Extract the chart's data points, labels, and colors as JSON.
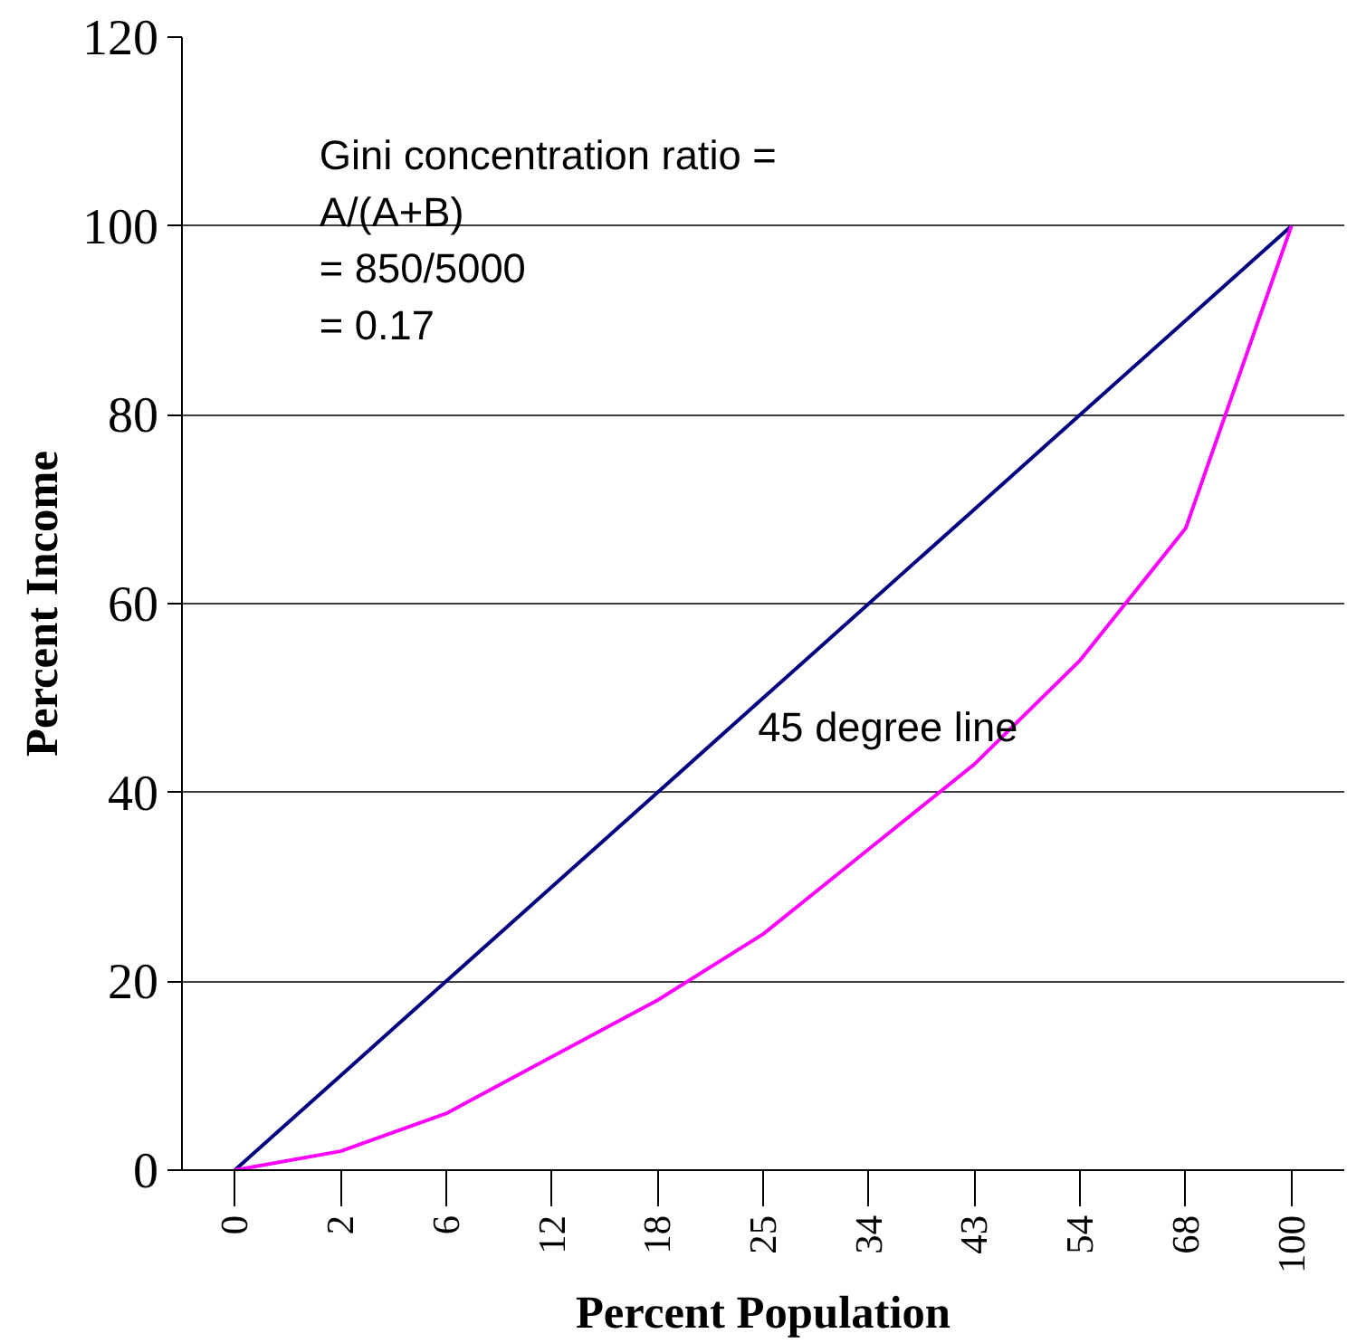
{
  "chart_data": {
    "type": "line",
    "xlabel": "Percent Population",
    "ylabel": "Percent Income",
    "categories": [
      "0",
      "2",
      "6",
      "12",
      "18",
      "25",
      "34",
      "43",
      "54",
      "68",
      "100"
    ],
    "series": [
      {
        "color": "#000080",
        "values": [
          0,
          10,
          20,
          30,
          40,
          50,
          60,
          70,
          80,
          90,
          100
        ]
      },
      {
        "color": "#ff00ff",
        "values": [
          0,
          2,
          6,
          12,
          18,
          25,
          34,
          43,
          54,
          68,
          100
        ]
      }
    ],
    "ylim": [
      0,
      120
    ],
    "yticks": [
      0,
      20,
      40,
      60,
      80,
      100,
      120
    ],
    "grid": "y",
    "marker": "none",
    "line_style": "solid",
    "annotations": [
      "Gini concentration ratio =\nA/(A+B)\n    = 850/5000\n    = 0.17",
      "45 degree line"
    ]
  }
}
